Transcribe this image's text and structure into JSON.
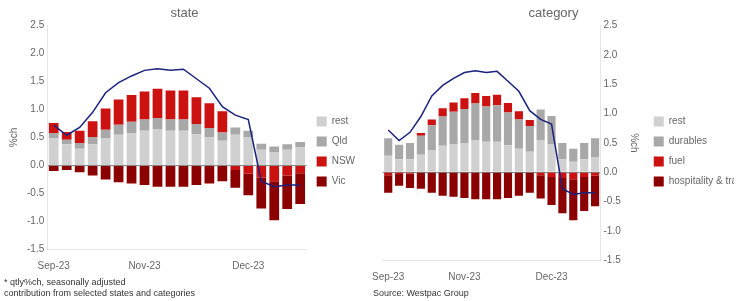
{
  "chart_data": [
    {
      "type": "bar",
      "title": "state",
      "y_label": "%ch",
      "stacked": true,
      "grid": false,
      "legend": "right",
      "annotation": "* qtly%ch, seasonally adjusted\ncontribution from selected states and categories",
      "categories": [
        "Sep-23",
        null,
        null,
        null,
        null,
        null,
        null,
        "Nov-23",
        null,
        null,
        null,
        null,
        null,
        null,
        null,
        "Dec-23",
        null,
        null,
        null,
        null
      ],
      "ylim": [
        -1.5,
        2.5
      ],
      "yticks": [
        -1.5,
        {
          "value": -1.0,
          "label": "-1.0"
        },
        -0.5,
        {
          "value": 0.0,
          "label": "0.0"
        },
        0.5,
        {
          "value": 1.0,
          "label": "1.0"
        },
        1.5,
        {
          "value": 2.0,
          "label": "2.0"
        },
        2.5
      ],
      "series": [
        {
          "name": "rest",
          "color": "#D0D0D0",
          "values": [
            0.48,
            0.38,
            0.3,
            0.38,
            0.48,
            0.55,
            0.58,
            0.62,
            0.65,
            0.62,
            0.62,
            0.56,
            0.5,
            0.44,
            0.55,
            0.5,
            0.28,
            0.24,
            0.28,
            0.32
          ]
        },
        {
          "name": "Qld",
          "color": "#A8A8A8",
          "values": [
            0.1,
            0.08,
            0.1,
            0.13,
            0.16,
            0.18,
            0.2,
            0.2,
            0.2,
            0.2,
            0.2,
            0.18,
            0.17,
            0.15,
            0.13,
            0.12,
            0.11,
            0.1,
            0.1,
            0.1
          ]
        },
        {
          "name": "NSW",
          "color": "#CC1111",
          "values": [
            0.18,
            0.14,
            0.22,
            0.28,
            0.38,
            0.45,
            0.48,
            0.5,
            0.52,
            0.52,
            0.52,
            0.48,
            0.44,
            0.38,
            -0.08,
            -0.15,
            -0.22,
            -0.28,
            -0.18,
            -0.14
          ]
        },
        {
          "name": "Vic",
          "color": "#8B0000",
          "values": [
            -0.1,
            -0.08,
            -0.12,
            -0.18,
            -0.25,
            -0.3,
            -0.32,
            -0.35,
            -0.38,
            -0.38,
            -0.38,
            -0.35,
            -0.32,
            -0.28,
            -0.32,
            -0.38,
            -0.55,
            -0.7,
            -0.6,
            -0.55
          ]
        },
        {
          "type": "line",
          "color": "#1a237e",
          "values": [
            0.72,
            0.54,
            0.68,
            0.95,
            1.3,
            1.48,
            1.6,
            1.7,
            1.73,
            1.7,
            1.72,
            1.55,
            1.38,
            1.05,
            0.9,
            0.82,
            -0.28,
            -0.38,
            -0.35,
            -0.35
          ]
        }
      ]
    },
    {
      "type": "bar",
      "title": "category",
      "y_label": "%ch",
      "stacked": true,
      "grid": false,
      "legend": "right",
      "annotation": "Source: Westpac Group",
      "categories": [
        "Sep-23",
        null,
        null,
        null,
        null,
        null,
        null,
        "Nov-23",
        null,
        null,
        null,
        null,
        null,
        null,
        null,
        "Dec-23",
        null,
        null,
        null,
        null
      ],
      "ylim": [
        -1.5,
        2.5
      ],
      "yticks": [
        -1.5,
        {
          "value": -1.0,
          "label": "-1.0"
        },
        -0.5,
        {
          "value": 0.0,
          "label": "0.0"
        },
        0.5,
        {
          "value": 1.0,
          "label": "1.0"
        },
        1.5,
        {
          "value": 2.0,
          "label": "2.0"
        },
        2.5
      ],
      "series": [
        {
          "name": "rest",
          "color": "#D0D0D0",
          "values": [
            0.28,
            0.22,
            0.22,
            0.3,
            0.38,
            0.45,
            0.48,
            0.5,
            0.55,
            0.52,
            0.52,
            0.46,
            0.4,
            0.35,
            0.55,
            0.48,
            0.22,
            0.18,
            0.22,
            0.26
          ]
        },
        {
          "name": "durables",
          "color": "#A8A8A8",
          "values": [
            0.3,
            0.25,
            0.28,
            0.32,
            0.42,
            0.5,
            0.55,
            0.58,
            0.62,
            0.6,
            0.62,
            0.56,
            0.5,
            0.44,
            0.52,
            0.48,
            0.28,
            0.22,
            0.28,
            0.32
          ]
        },
        {
          "name": "fuel",
          "color": "#CC1111",
          "values": [
            -0.05,
            -0.03,
            -0.02,
            0.05,
            0.1,
            0.14,
            0.16,
            0.18,
            0.18,
            0.18,
            0.18,
            0.16,
            0.14,
            0.1,
            -0.05,
            -0.08,
            -0.1,
            -0.12,
            -0.08,
            -0.06
          ]
        },
        {
          "name": "hospitality\n& travel",
          "color": "#8B0000",
          "values": [
            -0.3,
            -0.2,
            -0.25,
            -0.28,
            -0.35,
            -0.4,
            -0.42,
            -0.44,
            -0.46,
            -0.46,
            -0.46,
            -0.44,
            -0.4,
            -0.35,
            -0.4,
            -0.48,
            -0.6,
            -0.7,
            -0.58,
            -0.52
          ]
        },
        {
          "type": "line",
          "color": "#1a237e",
          "values": [
            0.72,
            0.54,
            0.68,
            0.95,
            1.3,
            1.48,
            1.6,
            1.7,
            1.73,
            1.7,
            1.72,
            1.55,
            1.38,
            1.05,
            0.9,
            0.82,
            -0.28,
            -0.38,
            -0.35,
            -0.35
          ]
        }
      ]
    }
  ]
}
